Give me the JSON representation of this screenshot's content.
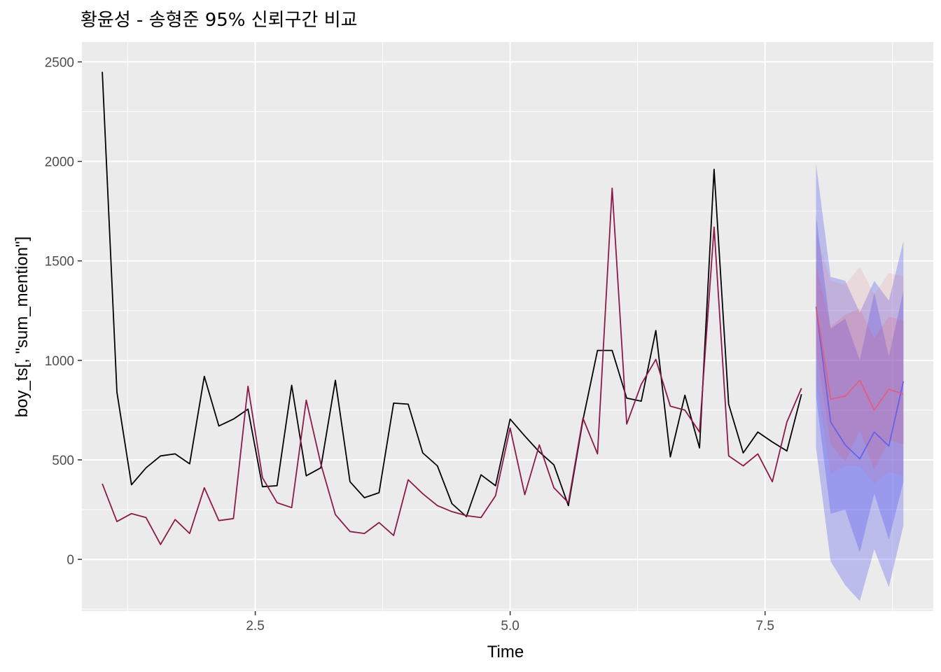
{
  "chart_data": {
    "type": "line",
    "title": "황윤성 - 송형준 95% 신뢰구간 비교",
    "xlabel": "Time",
    "ylabel": "boy_ts[, \"sum_mention\"]",
    "xlim": [
      0.8,
      9.15
    ],
    "ylim": [
      -260,
      2600
    ],
    "x_ticks": [
      2.5,
      5.0,
      7.5
    ],
    "x_tick_labels": [
      "2.5",
      "5.0",
      "7.5"
    ],
    "y_ticks": [
      0,
      500,
      1000,
      1500,
      2000,
      2500
    ],
    "y_tick_labels": [
      "0",
      "500",
      "1000",
      "1500",
      "2000",
      "2500"
    ],
    "grid": true,
    "background": "#ebebeb",
    "series": [
      {
        "color": "#000000",
        "x": [
          1.0,
          1.143,
          1.286,
          1.429,
          1.571,
          1.714,
          1.857,
          2.0,
          2.143,
          2.286,
          2.429,
          2.571,
          2.714,
          2.857,
          3.0,
          3.143,
          3.286,
          3.429,
          3.571,
          3.714,
          3.857,
          4.0,
          4.143,
          4.286,
          4.429,
          4.571,
          4.714,
          4.857,
          5.0,
          5.143,
          5.286,
          5.429,
          5.571,
          5.714,
          5.857,
          6.0,
          6.143,
          6.286,
          6.429,
          6.571,
          6.714,
          6.857,
          7.0,
          7.143,
          7.286,
          7.429,
          7.571,
          7.714,
          7.857
        ],
        "values": [
          2450,
          840,
          375,
          460,
          520,
          530,
          480,
          920,
          670,
          705,
          755,
          365,
          370,
          875,
          420,
          460,
          900,
          390,
          310,
          335,
          785,
          780,
          535,
          470,
          280,
          215,
          425,
          370,
          705,
          620,
          540,
          475,
          270,
          700,
          1050,
          1050,
          810,
          795,
          1150,
          515,
          825,
          560,
          1960,
          780,
          535,
          640,
          590,
          545,
          830
        ]
      },
      {
        "color": "#8b1a4a",
        "x": [
          1.0,
          1.143,
          1.286,
          1.429,
          1.571,
          1.714,
          1.857,
          2.0,
          2.143,
          2.286,
          2.429,
          2.571,
          2.714,
          2.857,
          3.0,
          3.143,
          3.286,
          3.429,
          3.571,
          3.714,
          3.857,
          4.0,
          4.143,
          4.286,
          4.429,
          4.571,
          4.714,
          4.857,
          5.0,
          5.143,
          5.286,
          5.429,
          5.571,
          5.714,
          5.857,
          6.0,
          6.143,
          6.286,
          6.429,
          6.571,
          6.714,
          6.857,
          7.0,
          7.143,
          7.286,
          7.429,
          7.571,
          7.714,
          7.857
        ],
        "values": [
          380,
          190,
          230,
          210,
          75,
          200,
          130,
          360,
          195,
          205,
          870,
          410,
          285,
          260,
          800,
          480,
          225,
          140,
          130,
          185,
          120,
          400,
          330,
          270,
          240,
          220,
          210,
          320,
          660,
          325,
          575,
          360,
          285,
          710,
          530,
          1865,
          680,
          880,
          1005,
          770,
          750,
          640,
          1670,
          520,
          470,
          530,
          390,
          690,
          860
        ]
      }
    ],
    "forecasts": [
      {
        "color": "#5a5af0",
        "x": [
          8.0,
          8.143,
          8.286,
          8.429,
          8.571,
          8.714,
          8.857
        ],
        "mean": [
          1270,
          690,
          575,
          505,
          640,
          570,
          895
        ],
        "lo80": [
          820,
          230,
          250,
          35,
          330,
          100,
          390
        ],
        "hi80": [
          1730,
          1160,
          1210,
          1000,
          1340,
          1020,
          1350
        ],
        "lo95": [
          560,
          -10,
          -130,
          -210,
          50,
          -140,
          170
        ],
        "hi95": [
          1990,
          1420,
          1400,
          1240,
          1400,
          1300,
          1600
        ]
      },
      {
        "color": "#e65a6e",
        "x": [
          8.0,
          8.143,
          8.286,
          8.429,
          8.571,
          8.714,
          8.857
        ],
        "mean": [
          1270,
          805,
          820,
          900,
          750,
          855,
          830
        ],
        "lo80": [
          1060,
          580,
          490,
          650,
          450,
          600,
          580
        ],
        "hi80": [
          1480,
          1170,
          1230,
          1260,
          1110,
          1220,
          1200
        ],
        "lo95": [
          900,
          430,
          470,
          470,
          380,
          440,
          420
        ],
        "hi95": [
          1640,
          1400,
          1380,
          1470,
          1330,
          1440,
          1420
        ]
      }
    ]
  }
}
